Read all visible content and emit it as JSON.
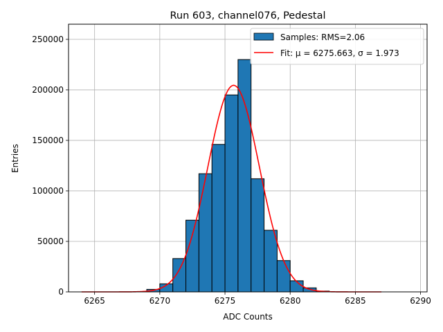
{
  "chart_data": {
    "type": "bar",
    "title": "Run 603, channel076, Pedestal",
    "xlabel": "ADC Counts",
    "ylabel": "Entries",
    "xlim": [
      6263,
      6290.5
    ],
    "ylim": [
      0,
      265000
    ],
    "xticks": [
      6265,
      6270,
      6275,
      6280,
      6285,
      6290
    ],
    "yticks": [
      0,
      50000,
      100000,
      150000,
      200000,
      250000
    ],
    "grid": true,
    "legend_position": "top-right",
    "colors": {
      "bar": "#1f77b4",
      "fit": "#ff0000",
      "grid": "#b0b0b0"
    },
    "series": [
      {
        "name": "Samples: RMS=2.06",
        "kind": "histogram",
        "bin_width": 1,
        "bin_left_edges": [
          6269,
          6270,
          6271,
          6272,
          6273,
          6274,
          6275,
          6276,
          6277,
          6278,
          6279,
          6280,
          6281,
          6282
        ],
        "values": [
          2500,
          8000,
          33000,
          71000,
          117000,
          146000,
          195000,
          230000,
          112000,
          61000,
          31000,
          11000,
          4000,
          800
        ]
      },
      {
        "name": "Fit: μ = 6275.663, σ = 1.973",
        "kind": "gaussian",
        "mu": 6275.663,
        "sigma": 1.973,
        "amplitude": 204500,
        "x_range": [
          6264,
          6287
        ]
      }
    ]
  }
}
